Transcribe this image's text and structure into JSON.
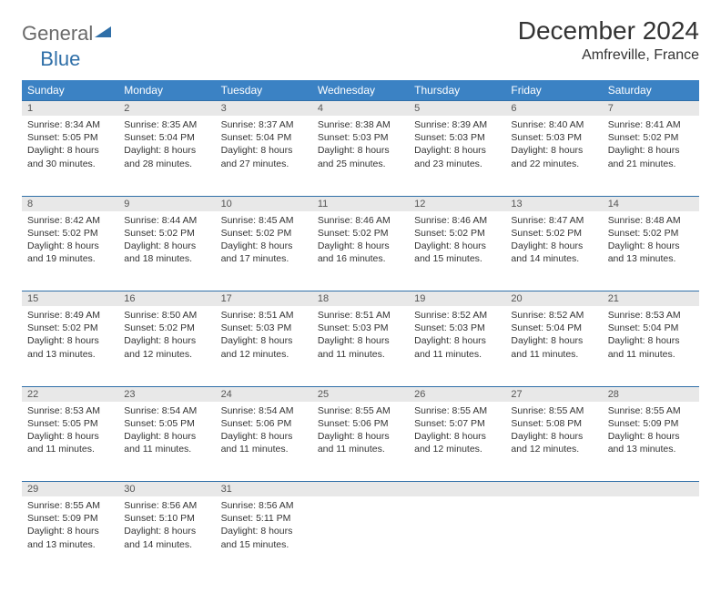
{
  "logo": {
    "text_general": "General",
    "text_blue": "Blue",
    "icon_color": "#2f6fa8"
  },
  "title": "December 2024",
  "location": "Amfreville, France",
  "header_bg": "#3b82c4",
  "header_fg": "#ffffff",
  "border_color": "#2f6fa8",
  "daynum_bg": "#e8e8e8",
  "weekdays": [
    "Sunday",
    "Monday",
    "Tuesday",
    "Wednesday",
    "Thursday",
    "Friday",
    "Saturday"
  ],
  "weeks": [
    [
      {
        "n": "1",
        "sunrise": "8:34 AM",
        "sunset": "5:05 PM",
        "daylight": "8 hours and 30 minutes."
      },
      {
        "n": "2",
        "sunrise": "8:35 AM",
        "sunset": "5:04 PM",
        "daylight": "8 hours and 28 minutes."
      },
      {
        "n": "3",
        "sunrise": "8:37 AM",
        "sunset": "5:04 PM",
        "daylight": "8 hours and 27 minutes."
      },
      {
        "n": "4",
        "sunrise": "8:38 AM",
        "sunset": "5:03 PM",
        "daylight": "8 hours and 25 minutes."
      },
      {
        "n": "5",
        "sunrise": "8:39 AM",
        "sunset": "5:03 PM",
        "daylight": "8 hours and 23 minutes."
      },
      {
        "n": "6",
        "sunrise": "8:40 AM",
        "sunset": "5:03 PM",
        "daylight": "8 hours and 22 minutes."
      },
      {
        "n": "7",
        "sunrise": "8:41 AM",
        "sunset": "5:02 PM",
        "daylight": "8 hours and 21 minutes."
      }
    ],
    [
      {
        "n": "8",
        "sunrise": "8:42 AM",
        "sunset": "5:02 PM",
        "daylight": "8 hours and 19 minutes."
      },
      {
        "n": "9",
        "sunrise": "8:44 AM",
        "sunset": "5:02 PM",
        "daylight": "8 hours and 18 minutes."
      },
      {
        "n": "10",
        "sunrise": "8:45 AM",
        "sunset": "5:02 PM",
        "daylight": "8 hours and 17 minutes."
      },
      {
        "n": "11",
        "sunrise": "8:46 AM",
        "sunset": "5:02 PM",
        "daylight": "8 hours and 16 minutes."
      },
      {
        "n": "12",
        "sunrise": "8:46 AM",
        "sunset": "5:02 PM",
        "daylight": "8 hours and 15 minutes."
      },
      {
        "n": "13",
        "sunrise": "8:47 AM",
        "sunset": "5:02 PM",
        "daylight": "8 hours and 14 minutes."
      },
      {
        "n": "14",
        "sunrise": "8:48 AM",
        "sunset": "5:02 PM",
        "daylight": "8 hours and 13 minutes."
      }
    ],
    [
      {
        "n": "15",
        "sunrise": "8:49 AM",
        "sunset": "5:02 PM",
        "daylight": "8 hours and 13 minutes."
      },
      {
        "n": "16",
        "sunrise": "8:50 AM",
        "sunset": "5:02 PM",
        "daylight": "8 hours and 12 minutes."
      },
      {
        "n": "17",
        "sunrise": "8:51 AM",
        "sunset": "5:03 PM",
        "daylight": "8 hours and 12 minutes."
      },
      {
        "n": "18",
        "sunrise": "8:51 AM",
        "sunset": "5:03 PM",
        "daylight": "8 hours and 11 minutes."
      },
      {
        "n": "19",
        "sunrise": "8:52 AM",
        "sunset": "5:03 PM",
        "daylight": "8 hours and 11 minutes."
      },
      {
        "n": "20",
        "sunrise": "8:52 AM",
        "sunset": "5:04 PM",
        "daylight": "8 hours and 11 minutes."
      },
      {
        "n": "21",
        "sunrise": "8:53 AM",
        "sunset": "5:04 PM",
        "daylight": "8 hours and 11 minutes."
      }
    ],
    [
      {
        "n": "22",
        "sunrise": "8:53 AM",
        "sunset": "5:05 PM",
        "daylight": "8 hours and 11 minutes."
      },
      {
        "n": "23",
        "sunrise": "8:54 AM",
        "sunset": "5:05 PM",
        "daylight": "8 hours and 11 minutes."
      },
      {
        "n": "24",
        "sunrise": "8:54 AM",
        "sunset": "5:06 PM",
        "daylight": "8 hours and 11 minutes."
      },
      {
        "n": "25",
        "sunrise": "8:55 AM",
        "sunset": "5:06 PM",
        "daylight": "8 hours and 11 minutes."
      },
      {
        "n": "26",
        "sunrise": "8:55 AM",
        "sunset": "5:07 PM",
        "daylight": "8 hours and 12 minutes."
      },
      {
        "n": "27",
        "sunrise": "8:55 AM",
        "sunset": "5:08 PM",
        "daylight": "8 hours and 12 minutes."
      },
      {
        "n": "28",
        "sunrise": "8:55 AM",
        "sunset": "5:09 PM",
        "daylight": "8 hours and 13 minutes."
      }
    ],
    [
      {
        "n": "29",
        "sunrise": "8:55 AM",
        "sunset": "5:09 PM",
        "daylight": "8 hours and 13 minutes."
      },
      {
        "n": "30",
        "sunrise": "8:56 AM",
        "sunset": "5:10 PM",
        "daylight": "8 hours and 14 minutes."
      },
      {
        "n": "31",
        "sunrise": "8:56 AM",
        "sunset": "5:11 PM",
        "daylight": "8 hours and 15 minutes."
      },
      null,
      null,
      null,
      null
    ]
  ],
  "labels": {
    "sunrise": "Sunrise:",
    "sunset": "Sunset:",
    "daylight": "Daylight:"
  }
}
